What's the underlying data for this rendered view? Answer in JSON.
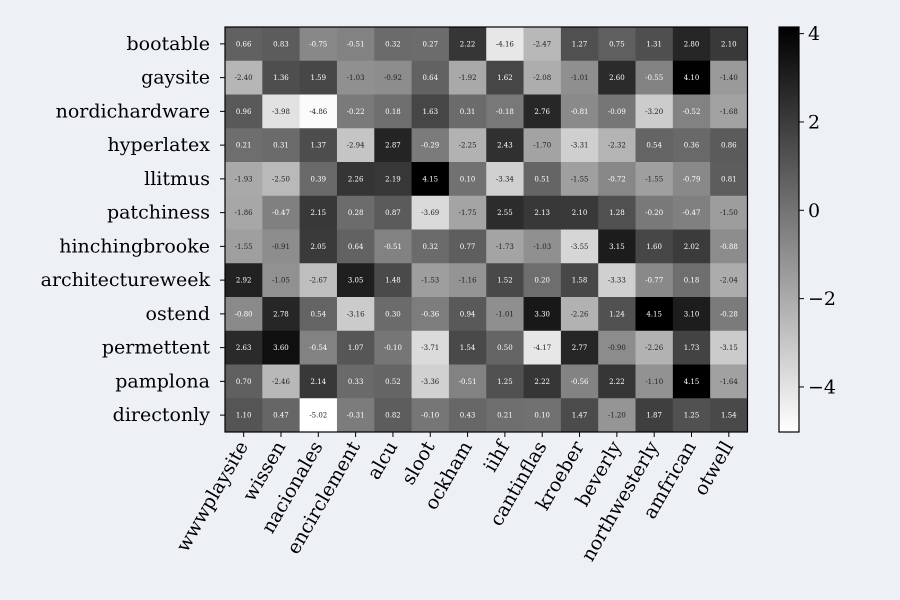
{
  "chart_data": {
    "type": "heatmap",
    "title": "",
    "xlabel": "",
    "ylabel": "",
    "colormap": "Greys",
    "background": "#edf1f5",
    "rows": [
      "bootable",
      "gaysite",
      "nordichardware",
      "hyperlatex",
      "llitmus",
      "patchiness",
      "hinchingbrooke",
      "architectureweek",
      "ostend",
      "permettent",
      "pamplona",
      "directonly"
    ],
    "columns": [
      "wwwplaysite",
      "wissen",
      "nacionales",
      "encirclement",
      "alcu",
      "sloot",
      "ockham",
      "iihf",
      "cantinflas",
      "kroeber",
      "beverly",
      "northwesterly",
      "amfrican",
      "otwell"
    ],
    "values": [
      [
        0.66,
        0.83,
        -0.75,
        -0.51,
        0.32,
        0.27,
        2.22,
        -4.16,
        -2.47,
        1.27,
        0.75,
        1.31,
        2.8,
        2.1
      ],
      [
        -2.4,
        1.36,
        1.59,
        -1.03,
        -0.92,
        0.64,
        -1.92,
        1.62,
        -2.08,
        -1.01,
        2.6,
        -0.55,
        4.1,
        -1.4
      ],
      [
        0.96,
        -3.98,
        -4.86,
        -0.22,
        0.18,
        1.63,
        0.31,
        -0.18,
        2.76,
        -0.81,
        -0.09,
        -3.2,
        -0.52,
        -1.68
      ],
      [
        0.21,
        0.31,
        1.37,
        -2.94,
        2.87,
        -0.29,
        -2.25,
        2.43,
        -1.7,
        -3.31,
        -2.32,
        0.54,
        0.36,
        0.86
      ],
      [
        -1.93,
        -2.5,
        0.39,
        2.26,
        2.19,
        4.15,
        0.1,
        -3.34,
        0.51,
        -1.55,
        -0.72,
        -1.55,
        -0.79,
        0.81
      ],
      [
        -1.86,
        -0.47,
        2.15,
        0.28,
        0.87,
        -3.69,
        -1.75,
        2.55,
        2.13,
        2.1,
        1.28,
        -0.2,
        -0.47,
        -1.5
      ],
      [
        -1.55,
        -0.91,
        2.05,
        0.64,
        -0.51,
        0.32,
        0.77,
        -1.73,
        -1.03,
        -3.55,
        3.15,
        1.6,
        2.02,
        -0.88
      ],
      [
        2.92,
        -1.05,
        -2.67,
        3.05,
        1.48,
        -1.53,
        -1.16,
        1.52,
        0.2,
        1.58,
        -3.33,
        -0.77,
        0.18,
        -2.04
      ],
      [
        -0.8,
        2.78,
        0.54,
        -3.16,
        0.3,
        -0.36,
        0.94,
        -1.01,
        3.3,
        -2.26,
        1.24,
        4.15,
        3.1,
        -0.28
      ],
      [
        2.63,
        3.6,
        -0.54,
        1.07,
        -0.1,
        -3.71,
        1.54,
        0.5,
        -4.17,
        2.77,
        -0.9,
        -2.26,
        1.73,
        -3.15
      ],
      [
        0.7,
        -2.46,
        2.14,
        0.33,
        0.52,
        -3.36,
        -0.51,
        1.25,
        2.22,
        -0.56,
        2.22,
        -1.1,
        4.15,
        -1.64
      ],
      [
        1.1,
        0.47,
        -5.02,
        -0.31,
        0.82,
        -0.1,
        0.43,
        0.21,
        0.1,
        1.47,
        -1.2,
        1.87,
        1.25,
        1.54
      ]
    ],
    "vmin": -5.02,
    "vmax": 4.15,
    "colorbar_ticks": [
      4,
      2,
      0,
      -2,
      -4
    ],
    "colorbar_tick_labels": [
      "4",
      "2",
      "0",
      "−2",
      "−4"
    ]
  }
}
